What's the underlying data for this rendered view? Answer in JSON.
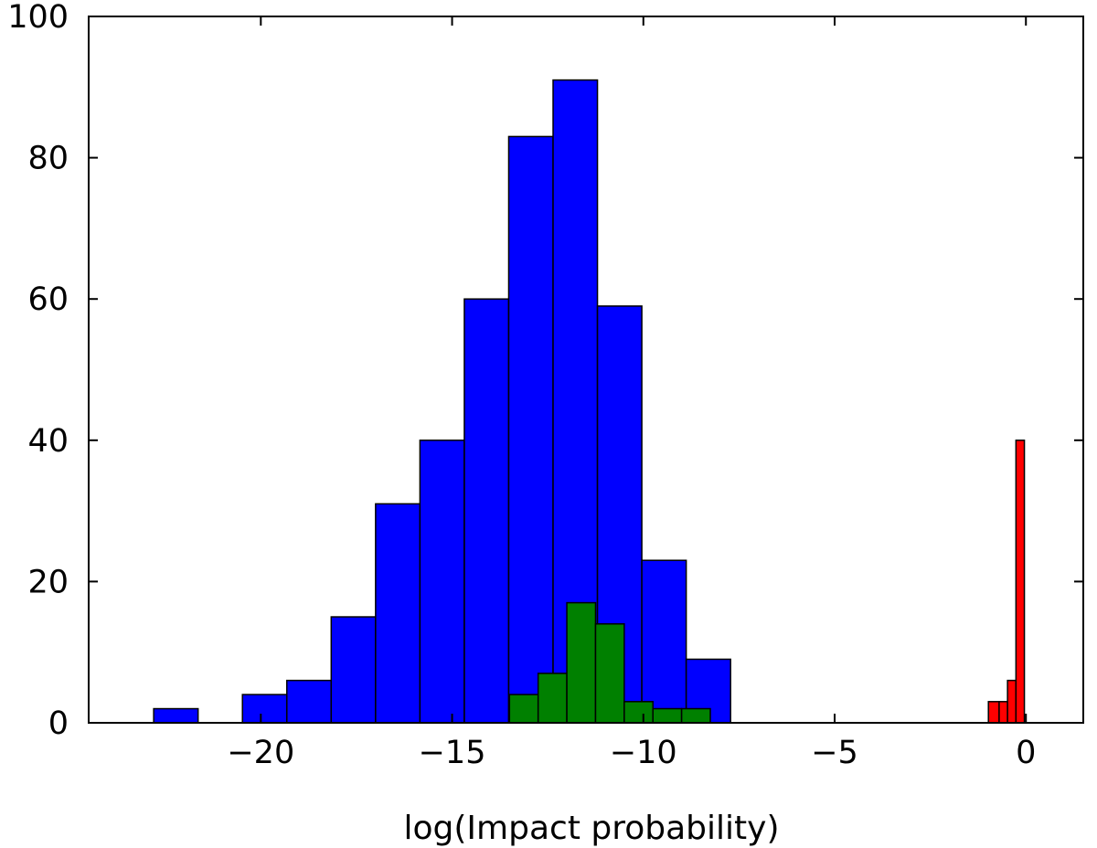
{
  "chart_data": {
    "type": "bar",
    "xlabel": "log(Impact probability)",
    "ylabel": "",
    "title": "",
    "xlim": [
      -24.5,
      1.5
    ],
    "ylim": [
      0,
      100
    ],
    "xticks": [
      -20,
      -15,
      -10,
      -5,
      0
    ],
    "xtick_labels": [
      "−20",
      "−15",
      "−10",
      "−5",
      "0"
    ],
    "yticks": [
      0,
      20,
      40,
      60,
      80,
      100
    ],
    "ytick_labels": [
      "0",
      "20",
      "40",
      "60",
      "80",
      "100"
    ],
    "series": [
      {
        "color": "#0000ff",
        "bins": [
          {
            "x0": -22.8,
            "x1": -21.64,
            "count": 2
          },
          {
            "x0": -20.48,
            "x1": -19.32,
            "count": 4
          },
          {
            "x0": -19.32,
            "x1": -18.16,
            "count": 6
          },
          {
            "x0": -18.16,
            "x1": -17.0,
            "count": 15
          },
          {
            "x0": -17.0,
            "x1": -15.84,
            "count": 31
          },
          {
            "x0": -15.84,
            "x1": -14.68,
            "count": 40
          },
          {
            "x0": -14.68,
            "x1": -13.52,
            "count": 60
          },
          {
            "x0": -13.52,
            "x1": -12.36,
            "count": 83
          },
          {
            "x0": -12.36,
            "x1": -11.2,
            "count": 91
          },
          {
            "x0": -11.2,
            "x1": -10.04,
            "count": 59
          },
          {
            "x0": -10.04,
            "x1": -8.88,
            "count": 23
          },
          {
            "x0": -8.88,
            "x1": -7.72,
            "count": 9
          }
        ]
      },
      {
        "color": "#008000",
        "bins": [
          {
            "x0": -13.5,
            "x1": -12.75,
            "count": 4
          },
          {
            "x0": -12.75,
            "x1": -12.0,
            "count": 7
          },
          {
            "x0": -12.0,
            "x1": -11.25,
            "count": 17
          },
          {
            "x0": -11.25,
            "x1": -10.5,
            "count": 14
          },
          {
            "x0": -10.5,
            "x1": -9.75,
            "count": 3
          },
          {
            "x0": -9.75,
            "x1": -9.0,
            "count": 2
          },
          {
            "x0": -9.0,
            "x1": -8.25,
            "count": 2
          }
        ]
      },
      {
        "color": "#ff0000",
        "bins": [
          {
            "x0": -0.98,
            "x1": -0.7,
            "count": 3
          },
          {
            "x0": -0.7,
            "x1": -0.48,
            "count": 3
          },
          {
            "x0": -0.48,
            "x1": -0.26,
            "count": 6
          },
          {
            "x0": -0.26,
            "x1": -0.04,
            "count": 40
          }
        ]
      }
    ],
    "grid": false,
    "legend": "none"
  }
}
